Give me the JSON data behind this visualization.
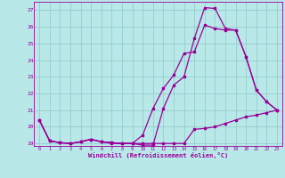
{
  "xlabel": "Windchill (Refroidissement éolien,°C)",
  "bg_color": "#b8e8e8",
  "grid_color": "#90c8c8",
  "line_color": "#990099",
  "x_min": 0,
  "x_max": 23,
  "y_min": 19,
  "y_max": 27,
  "series1_x": [
    0,
    1,
    2,
    3,
    4,
    5,
    6,
    7,
    8,
    9,
    10,
    11,
    12,
    13,
    14,
    15,
    16,
    17,
    18,
    19,
    20,
    21,
    22,
    23
  ],
  "series1_y": [
    20.4,
    19.15,
    19.05,
    19.0,
    19.1,
    19.25,
    19.1,
    19.0,
    19.0,
    19.0,
    19.0,
    19.0,
    19.0,
    19.0,
    19.0,
    19.85,
    19.9,
    20.0,
    20.2,
    20.4,
    20.6,
    20.7,
    20.85,
    21.0
  ],
  "series2_x": [
    0,
    1,
    2,
    3,
    4,
    5,
    6,
    7,
    8,
    9,
    10,
    11,
    12,
    13,
    14,
    15,
    16,
    17,
    18,
    19,
    20,
    21,
    22,
    23
  ],
  "series2_y": [
    20.4,
    19.15,
    19.05,
    19.0,
    19.1,
    19.25,
    19.1,
    19.05,
    19.0,
    19.0,
    18.9,
    18.9,
    21.1,
    22.5,
    23.0,
    25.3,
    27.15,
    27.1,
    25.9,
    25.8,
    24.2,
    22.2,
    21.5,
    21.0
  ],
  "series3_x": [
    0,
    1,
    2,
    3,
    4,
    5,
    6,
    7,
    8,
    9,
    10,
    11,
    12,
    13,
    14,
    15,
    16,
    17,
    18,
    19,
    20,
    21,
    22,
    23
  ],
  "series3_y": [
    20.4,
    19.15,
    19.05,
    19.0,
    19.1,
    19.25,
    19.1,
    19.05,
    19.0,
    19.0,
    19.5,
    21.1,
    22.3,
    23.1,
    24.4,
    24.5,
    26.1,
    25.9,
    25.8,
    25.8,
    24.2,
    22.2,
    21.5,
    21.0
  ]
}
